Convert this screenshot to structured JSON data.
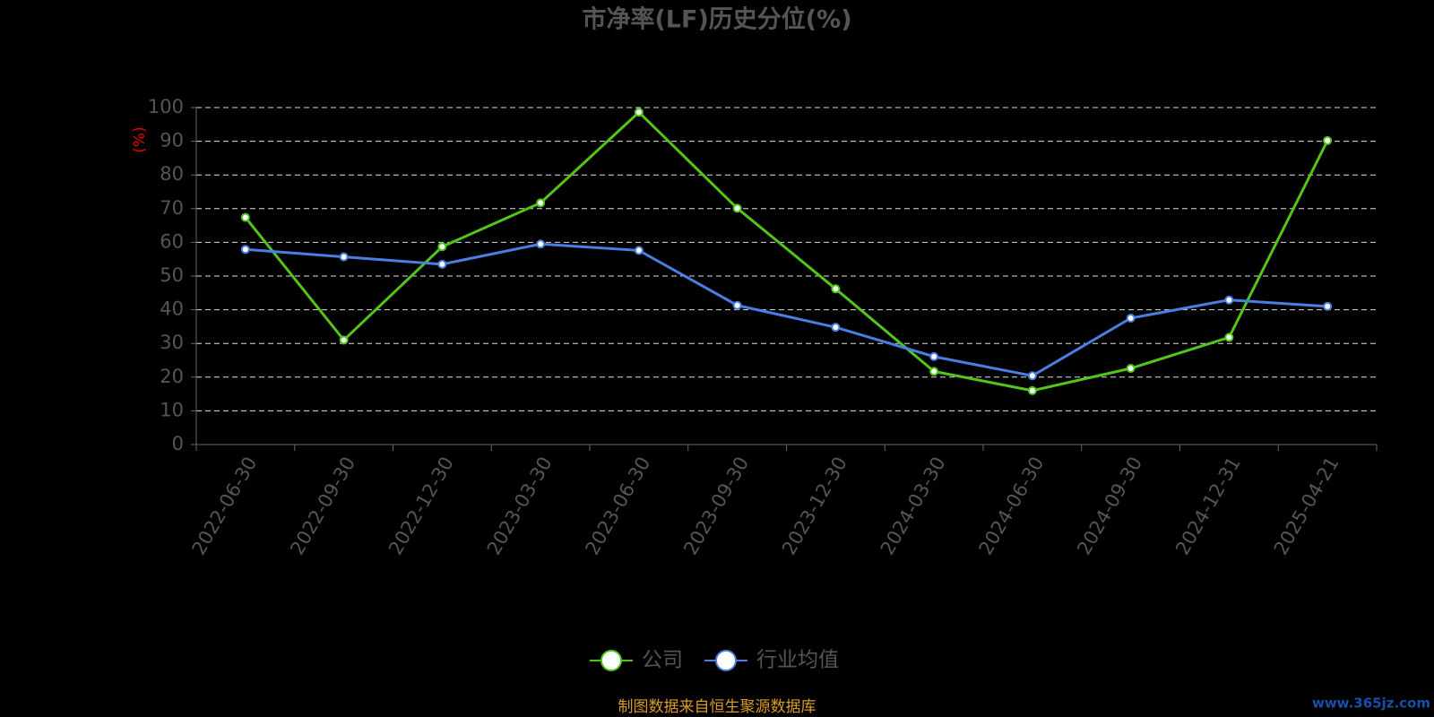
{
  "chart_data": {
    "type": "line",
    "title": "市净率(LF)历史分位(%)",
    "y_label": "(%)",
    "categories": [
      "2022-06-30",
      "2022-09-30",
      "2022-12-30",
      "2023-03-30",
      "2023-06-30",
      "2023-09-30",
      "2023-12-30",
      "2024-03-30",
      "2024-06-30",
      "2024-09-30",
      "2024-12-31",
      "2025-04-21"
    ],
    "series": [
      {
        "name": "公司",
        "color": "#52c41a",
        "values": [
          67.4,
          31,
          58.7,
          71.7,
          98.6,
          70.1,
          46.2,
          21.7,
          16,
          22.6,
          31.8,
          90.2
        ]
      },
      {
        "name": "行业均值",
        "color": "#4a7ee0",
        "values": [
          57.9,
          55.7,
          53.5,
          59.5,
          57.6,
          41.3,
          34.8,
          26.1,
          20.4,
          37.5,
          42.9,
          41
        ]
      }
    ],
    "ylim": [
      0,
      100
    ],
    "yticks": [
      0,
      10,
      20,
      30,
      40,
      50,
      60,
      70,
      80,
      90,
      100
    ],
    "grid": true,
    "legend": "bottom",
    "source": "制图数据来自恒生聚源数据库",
    "watermark": "www.365jz.com"
  }
}
